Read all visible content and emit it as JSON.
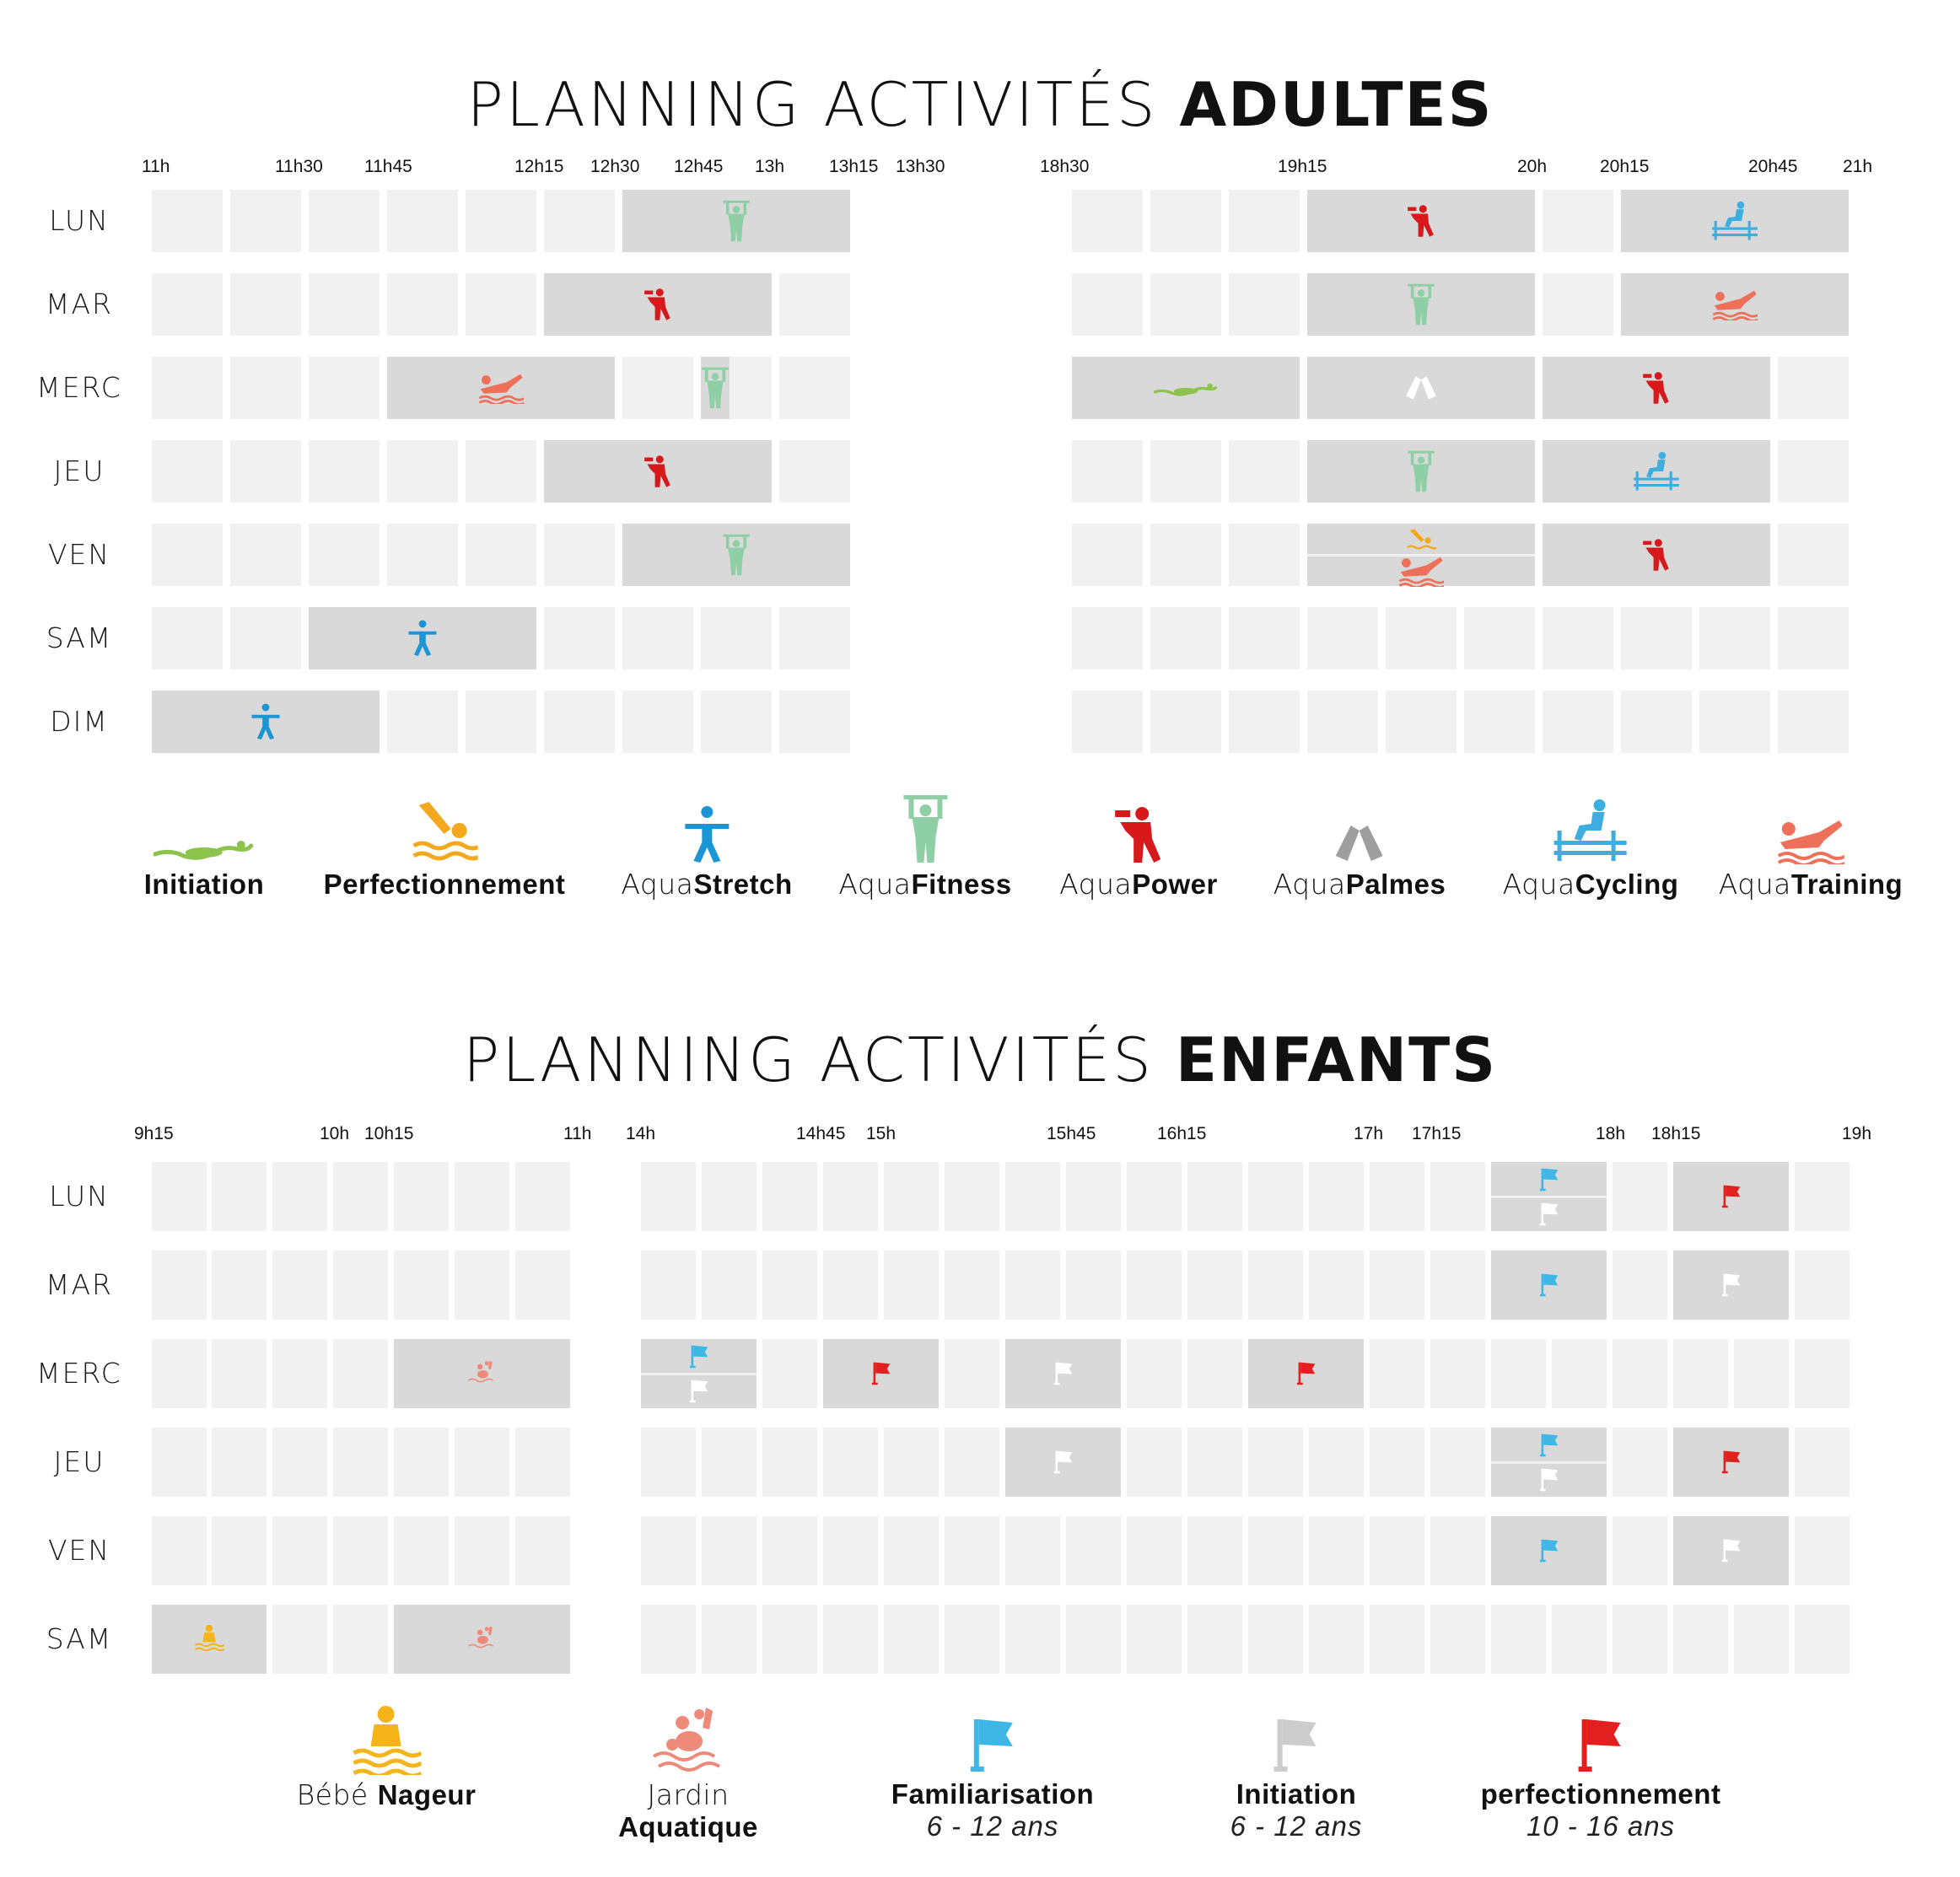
{
  "adultes": {
    "title_light": "PLANNING ACTIVITÉS ",
    "title_bold": "ADULTES",
    "ticks_left": [
      "11h",
      "11h30",
      "11h45",
      "12h15",
      "12h30",
      "12h45",
      "13h",
      "13h15",
      "13h30"
    ],
    "ticks_right": [
      "18h30",
      "19h15",
      "20h",
      "20h15",
      "20h45",
      "21h"
    ],
    "days": [
      "LUN",
      "MAR",
      "MERC",
      "JEU",
      "VEN",
      "SAM",
      "DIM"
    ],
    "legend": [
      {
        "light": "",
        "bold": "Initiation",
        "icon": "swimmer-icon",
        "color": "#8cc34a"
      },
      {
        "light": "",
        "bold": "Perfectionnement",
        "icon": "diver-icon",
        "color": "#f4a81d"
      },
      {
        "light": "Aqua",
        "bold": "Stretch",
        "icon": "stretch-icon",
        "color": "#1b95d3"
      },
      {
        "light": "Aqua",
        "bold": "Fitness",
        "icon": "fitness-icon",
        "color": "#8fcfa5"
      },
      {
        "light": "Aqua",
        "bold": "Power",
        "icon": "power-icon",
        "color": "#d7191c"
      },
      {
        "light": "Aqua",
        "bold": "Palmes",
        "icon": "palmes-icon",
        "color": "#9e9e9e"
      },
      {
        "light": "Aqua",
        "bold": "Cycling",
        "icon": "cycling-icon",
        "color": "#3eaee0"
      },
      {
        "light": "Aqua",
        "bold": "Training",
        "icon": "training-icon",
        "color": "#ee7058"
      }
    ]
  },
  "enfants": {
    "title_light": "PLANNING ACTIVITÉS ",
    "title_bold": "ENFANTS",
    "ticks_left": [
      "9h15",
      "10h",
      "10h15",
      "11h"
    ],
    "ticks_right": [
      "14h",
      "14h45",
      "15h",
      "15h45",
      "16h15",
      "17h",
      "17h15",
      "18h",
      "18h15",
      "19h"
    ],
    "days": [
      "LUN",
      "MAR",
      "MERC",
      "JEU",
      "VEN",
      "SAM"
    ],
    "legend": [
      {
        "light": "Bébé ",
        "bold": "Nageur",
        "sub": "",
        "icon": "baby-swimmer-icon",
        "color": "#f4b41a"
      },
      {
        "light": "Jardin",
        "bold": "Aquatique",
        "sub": "",
        "icon": "water-garden-icon",
        "color": "#ee8a7a"
      },
      {
        "light": "",
        "bold": "Familiarisation",
        "sub": "6 - 12 ans",
        "icon": "flag-blue-icon",
        "color": "#3eb7e6"
      },
      {
        "light": "",
        "bold": "Initiation",
        "sub": "6 - 12 ans",
        "icon": "flag-white-icon",
        "color": "#cccccc"
      },
      {
        "light": "",
        "bold": "perfectionnement",
        "sub": "10 - 16 ans",
        "icon": "flag-red-icon",
        "color": "#e3201f"
      }
    ]
  }
}
